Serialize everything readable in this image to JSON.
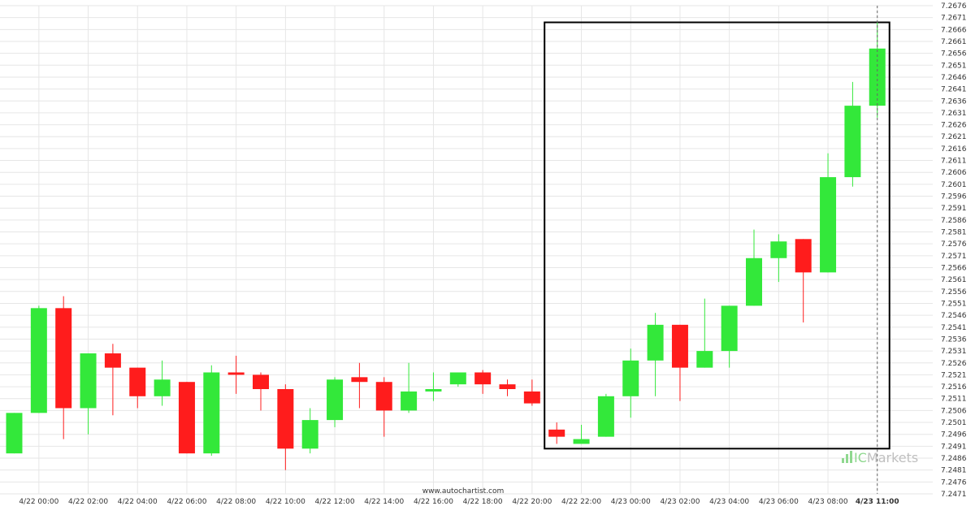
{
  "chart_data": {
    "type": "candlestick",
    "title": "",
    "xlabel": "",
    "ylabel": "",
    "ylim": [
      7.2471,
      7.2676
    ],
    "grid": true,
    "y_ticks": [
      "7.2676",
      "7.2671",
      "7.2666",
      "7.2661",
      "7.2656",
      "7.2651",
      "7.2646",
      "7.2641",
      "7.2636",
      "7.2631",
      "7.2626",
      "7.2621",
      "7.2616",
      "7.2611",
      "7.2606",
      "7.2601",
      "7.2596",
      "7.2591",
      "7.2586",
      "7.2581",
      "7.2576",
      "7.2571",
      "7.2566",
      "7.2561",
      "7.2556",
      "7.2551",
      "7.2546",
      "7.2541",
      "7.2536",
      "7.2531",
      "7.2526",
      "7.2521",
      "7.2516",
      "7.2511",
      "7.2506",
      "7.2501",
      "7.2496",
      "7.2491",
      "7.2486",
      "7.2481",
      "7.2476",
      "7.2471"
    ],
    "x_ticks": [
      "4/22 00:00",
      "4/22 02:00",
      "4/22 04:00",
      "4/22 06:00",
      "4/22 08:00",
      "4/22 10:00",
      "4/22 12:00",
      "4/22 14:00",
      "4/22 16:00",
      "4/22 18:00",
      "4/22 20:00",
      "4/22 22:00",
      "4/23 00:00",
      "4/23 02:00",
      "4/23 04:00",
      "4/23 06:00",
      "4/23 08:00",
      "4/23 11:00"
    ],
    "x_tick_slots": [
      1,
      3,
      5,
      7,
      9,
      11,
      13,
      15,
      17,
      19,
      21,
      23,
      25,
      27,
      29,
      31,
      33,
      35
    ],
    "highlighted_x_tick": "4/23 11:00",
    "candles": [
      {
        "open": 7.2488,
        "high": 7.2505,
        "low": 7.2488,
        "close": 7.2505
      },
      {
        "open": 7.2505,
        "high": 7.255,
        "low": 7.2505,
        "close": 7.2549
      },
      {
        "open": 7.2549,
        "high": 7.2554,
        "low": 7.2494,
        "close": 7.2507
      },
      {
        "open": 7.2507,
        "high": 7.253,
        "low": 7.2496,
        "close": 7.253
      },
      {
        "open": 7.253,
        "high": 7.2534,
        "low": 7.2504,
        "close": 7.2524
      },
      {
        "open": 7.2524,
        "high": 7.2524,
        "low": 7.2507,
        "close": 7.2512
      },
      {
        "open": 7.2512,
        "high": 7.2527,
        "low": 7.2508,
        "close": 7.2519
      },
      {
        "open": 7.2518,
        "high": 7.2518,
        "low": 7.2488,
        "close": 7.2488
      },
      {
        "open": 7.2488,
        "high": 7.2525,
        "low": 7.2487,
        "close": 7.2522
      },
      {
        "open": 7.2522,
        "high": 7.2529,
        "low": 7.2513,
        "close": 7.2521
      },
      {
        "open": 7.2521,
        "high": 7.2522,
        "low": 7.2506,
        "close": 7.2515
      },
      {
        "open": 7.2515,
        "high": 7.2517,
        "low": 7.2481,
        "close": 7.249
      },
      {
        "open": 7.249,
        "high": 7.2507,
        "low": 7.2488,
        "close": 7.2502
      },
      {
        "open": 7.2502,
        "high": 7.252,
        "low": 7.2499,
        "close": 7.2519
      },
      {
        "open": 7.252,
        "high": 7.2526,
        "low": 7.2507,
        "close": 7.2518
      },
      {
        "open": 7.2518,
        "high": 7.252,
        "low": 7.2495,
        "close": 7.2506
      },
      {
        "open": 7.2506,
        "high": 7.2526,
        "low": 7.2505,
        "close": 7.2514
      },
      {
        "open": 7.2514,
        "high": 7.2522,
        "low": 7.251,
        "close": 7.2515
      },
      {
        "open": 7.2517,
        "high": 7.2522,
        "low": 7.2516,
        "close": 7.2522
      },
      {
        "open": 7.2522,
        "high": 7.2523,
        "low": 7.2513,
        "close": 7.2517
      },
      {
        "open": 7.2517,
        "high": 7.2519,
        "low": 7.2512,
        "close": 7.2515
      },
      {
        "open": 7.2514,
        "high": 7.2519,
        "low": 7.2508,
        "close": 7.2509
      },
      {
        "open": 7.2498,
        "high": 7.2501,
        "low": 7.2492,
        "close": 7.2495
      },
      {
        "open": 7.2492,
        "high": 7.25,
        "low": 7.2492,
        "close": 7.2494
      },
      {
        "open": 7.2495,
        "high": 7.2513,
        "low": 7.2495,
        "close": 7.2512
      },
      {
        "open": 7.2512,
        "high": 7.2532,
        "low": 7.2503,
        "close": 7.2527
      },
      {
        "open": 7.2527,
        "high": 7.2547,
        "low": 7.2512,
        "close": 7.2542
      },
      {
        "open": 7.2542,
        "high": 7.2542,
        "low": 7.251,
        "close": 7.2524
      },
      {
        "open": 7.2524,
        "high": 7.2553,
        "low": 7.2524,
        "close": 7.2531
      },
      {
        "open": 7.2531,
        "high": 7.255,
        "low": 7.2524,
        "close": 7.255
      },
      {
        "open": 7.255,
        "high": 7.2582,
        "low": 7.255,
        "close": 7.257
      },
      {
        "open": 7.257,
        "high": 7.258,
        "low": 7.256,
        "close": 7.2577
      },
      {
        "open": 7.2578,
        "high": 7.2578,
        "low": 7.2543,
        "close": 7.2564
      },
      {
        "open": 7.2564,
        "high": 7.2614,
        "low": 7.2564,
        "close": 7.2604
      },
      {
        "open": 7.2604,
        "high": 7.2644,
        "low": 7.26,
        "close": 7.2634
      },
      {
        "open": 7.2634,
        "high": 7.2669,
        "low": 7.2629,
        "close": 7.2658
      }
    ],
    "pattern_box": {
      "start_index": 22,
      "end_index": 35,
      "price_low": 7.249,
      "price_high": 7.2669
    },
    "colors": {
      "bullish": "#33e83a",
      "bearish": "#ff1c1c",
      "grid": "#e6e6e6",
      "pattern_box": "#000000",
      "axis_text": "#333333",
      "current_time_line": "#666666",
      "watermark_green": "#8fd88f",
      "watermark_gray": "#bfbfbf"
    }
  },
  "watermark": {
    "brand_prefix": "IC",
    "brand_suffix": "Markets",
    "icon": "bar-chart-logo-icon"
  },
  "footer": {
    "source": "www.autochartist.com"
  }
}
